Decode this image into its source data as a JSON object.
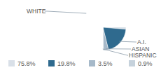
{
  "chart_data": {
    "type": "pie",
    "categories": [
      "WHITE",
      "A.I.",
      "ASIAN",
      "HISPANIC"
    ],
    "values": [
      75.8,
      19.8,
      3.5,
      0.9
    ],
    "value_labels": [
      "75.8%",
      "19.8%",
      "3.5%",
      "0.9%"
    ],
    "colors": [
      "#d9e0e8",
      "#2f6a8e",
      "#a6b9c9",
      "#c6d2dc"
    ]
  }
}
